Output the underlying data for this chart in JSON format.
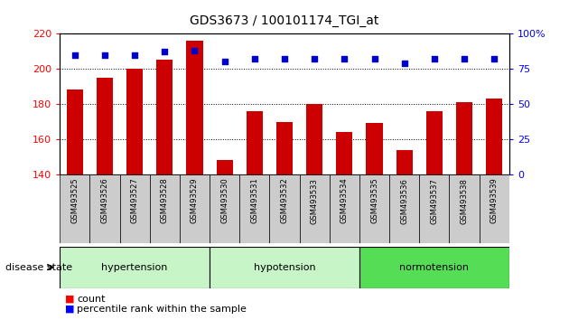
{
  "title": "GDS3673 / 100101174_TGI_at",
  "samples": [
    "GSM493525",
    "GSM493526",
    "GSM493527",
    "GSM493528",
    "GSM493529",
    "GSM493530",
    "GSM493531",
    "GSM493532",
    "GSM493533",
    "GSM493534",
    "GSM493535",
    "GSM493536",
    "GSM493537",
    "GSM493538",
    "GSM493539"
  ],
  "counts": [
    188,
    195,
    200,
    205,
    216,
    148,
    176,
    170,
    180,
    164,
    169,
    154,
    176,
    181,
    183
  ],
  "percentiles": [
    85,
    85,
    85,
    87,
    88,
    80,
    82,
    82,
    82,
    82,
    82,
    79,
    82,
    82,
    82
  ],
  "ylim_left": [
    140,
    220
  ],
  "ylim_right": [
    0,
    100
  ],
  "yticks_left": [
    140,
    160,
    180,
    200,
    220
  ],
  "yticks_right": [
    0,
    25,
    50,
    75,
    100
  ],
  "bar_color": "#CC0000",
  "dot_color": "#0000CC",
  "label_count": "count",
  "label_percentile": "percentile rank within the sample",
  "disease_state_label": "disease state",
  "group_labels": [
    "hypertension",
    "hypotension",
    "normotension"
  ],
  "group_ranges": [
    [
      0,
      5
    ],
    [
      5,
      10
    ],
    [
      10,
      15
    ]
  ],
  "group_colors": [
    "#C8F5C8",
    "#C8F5C8",
    "#55DD55"
  ]
}
